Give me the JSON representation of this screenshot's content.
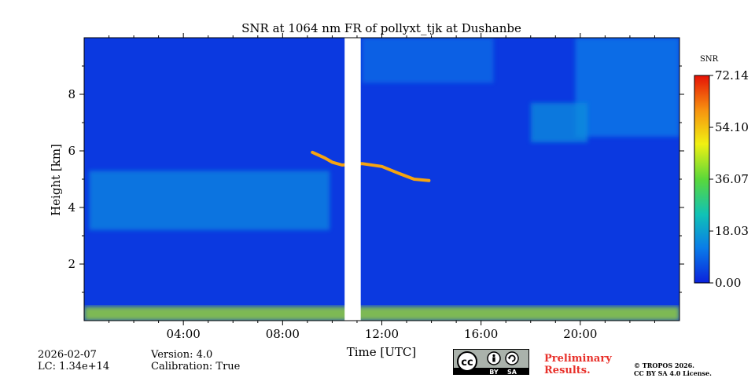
{
  "chart_data": {
    "type": "heatmap",
    "title": "SNR at 1064 nm FR of pollyxt_tjk at Dushanbe",
    "xlabel": "Time [UTC]",
    "ylabel": "Height [km]",
    "xlim_hours": [
      0,
      24
    ],
    "ylim_km": [
      0,
      10
    ],
    "x_ticks": [
      {
        "value": 4,
        "label": "04:00"
      },
      {
        "value": 8,
        "label": "08:00"
      },
      {
        "value": 12,
        "label": "12:00"
      },
      {
        "value": 16,
        "label": "16:00"
      },
      {
        "value": 20,
        "label": "20:00"
      }
    ],
    "y_ticks": [
      {
        "value": 2,
        "label": "2"
      },
      {
        "value": 4,
        "label": "4"
      },
      {
        "value": 6,
        "label": "6"
      },
      {
        "value": 8,
        "label": "8"
      }
    ],
    "colorbar": {
      "label": "SNR",
      "min": 0,
      "max": 72.14,
      "ticks": [
        {
          "value": 0,
          "label": "0.00"
        },
        {
          "value": 18.03,
          "label": "18.03"
        },
        {
          "value": 36.07,
          "label": "36.07"
        },
        {
          "value": 54.1,
          "label": "54.10"
        },
        {
          "value": 72.14,
          "label": "72.14"
        }
      ],
      "colors": [
        "#0b22dd",
        "#0a7de8",
        "#10c2b6",
        "#5ad83a",
        "#f0f012",
        "#f79410",
        "#e61206"
      ]
    },
    "background_snr": 3,
    "data_gap_hours": [
      10.5,
      11.15
    ],
    "features": [
      {
        "name": "surface-layer",
        "kind": "band",
        "x": [
          0,
          24
        ],
        "y_km": [
          0.0,
          0.5
        ],
        "snr": 42
      },
      {
        "name": "morning-aerosol-fringe",
        "kind": "band",
        "x": [
          0.2,
          9.9
        ],
        "y_km": [
          3.2,
          5.3
        ],
        "snr": 14
      },
      {
        "name": "upper-thin-cloud-right",
        "kind": "band",
        "x": [
          19.8,
          24
        ],
        "y_km": [
          6.5,
          10.0
        ],
        "snr": 12
      },
      {
        "name": "upper-thin-cloud-mid",
        "kind": "band",
        "x": [
          18.0,
          20.3
        ],
        "y_km": [
          6.3,
          7.7
        ],
        "snr": 15
      },
      {
        "name": "upper-cloud-wisps",
        "kind": "band",
        "x": [
          11.2,
          16.5
        ],
        "y_km": [
          8.4,
          10.0
        ],
        "snr": 10
      },
      {
        "name": "cloud-layer",
        "kind": "line",
        "points": [
          [
            9.2,
            5.95
          ],
          [
            9.7,
            5.75
          ],
          [
            10.0,
            5.6
          ],
          [
            10.4,
            5.5
          ],
          [
            11.2,
            5.55
          ],
          [
            12.0,
            5.45
          ],
          [
            12.7,
            5.2
          ],
          [
            13.3,
            5.0
          ],
          [
            13.9,
            4.95
          ]
        ],
        "snr": 58
      }
    ]
  },
  "footer": {
    "date": "2026-02-07",
    "lc": "LC: 1.34e+14",
    "version": "Version: 4.0",
    "calibration": "Calibration: True",
    "prelim_line1": "Preliminary",
    "prelim_line2": "Results.",
    "copyright_line1": "© TROPOS 2026.",
    "copyright_line2": "CC BY SA 4.0 License.",
    "license_badge": {
      "cc": "cc",
      "by": "BY",
      "sa": "SA"
    }
  }
}
